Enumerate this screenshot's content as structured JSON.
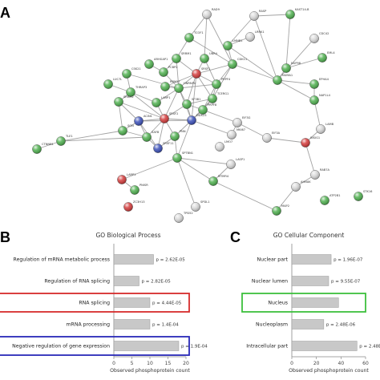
{
  "panels": {
    "a": "A",
    "b": "B",
    "c": "C"
  },
  "network": {
    "nodes": [
      {
        "id": "RAD9",
        "label": "RAD9",
        "color": "#d8d8d8"
      },
      {
        "id": "RASP",
        "label": "RASP",
        "color": "#d8d8d8"
      },
      {
        "id": "KAST14",
        "label": "KAST14-B",
        "color": "#4fb04f"
      },
      {
        "id": "TCOF1",
        "label": "TCOF1",
        "color": "#4fb04f"
      },
      {
        "id": "LRRK1",
        "label": "LRRK1",
        "color": "#d8d8d8"
      },
      {
        "id": "CDC42",
        "label": "CDC42",
        "color": "#d8d8d8"
      },
      {
        "id": "LMNB1",
        "label": "LMNB1",
        "color": "#4fb04f"
      },
      {
        "id": "EML4",
        "label": "EML4",
        "color": "#4fb04f"
      },
      {
        "id": "UBR4",
        "label": "UBR4",
        "color": "#4fb04f"
      },
      {
        "id": "ARHGAP1",
        "label": "ARHGAP1",
        "color": "#4fb04f"
      },
      {
        "id": "SRRM1",
        "label": "SRRM1",
        "color": "#4fb04f"
      },
      {
        "id": "PCBP2",
        "label": "PCBP2",
        "color": "#4fb04f"
      },
      {
        "id": "CSK21",
        "label": "CSK21",
        "color": "#4fb04f"
      },
      {
        "id": "RBM17",
        "label": "RBM17",
        "color": "#4fb04f"
      },
      {
        "id": "NUP98",
        "label": "NUP98",
        "color": "#4fb04f"
      },
      {
        "id": "CDK11",
        "label": "CDK11",
        "color": "#4fb04f"
      },
      {
        "id": "NUMA1",
        "label": "NUMA1",
        "color": "#4fb04f"
      },
      {
        "id": "SRSF1",
        "label": "SRSF1",
        "color": "#d33b3b"
      },
      {
        "id": "LARP1b",
        "label": "LARP1",
        "color": "#4fb04f"
      },
      {
        "id": "PRPF4",
        "label": "PRPF4",
        "color": "#4fb04f"
      },
      {
        "id": "EPHA4",
        "label": "EPHA4",
        "color": "#4fb04f"
      },
      {
        "id": "TCERG1",
        "label": "TCERG1",
        "color": "#4fb04f"
      },
      {
        "id": "THRAP3",
        "label": "THRAP3",
        "color": "#4fb04f"
      },
      {
        "id": "HNRNPU",
        "label": "HNRNPU",
        "color": "#4fb04f"
      },
      {
        "id": "NAP1L4",
        "label": "NAP1L4",
        "color": "#4fb04f"
      },
      {
        "id": "SF3B1",
        "label": "SF3B1",
        "color": "#4fb04f"
      },
      {
        "id": "PRPF8",
        "label": "PRPF8",
        "color": "#4fb04f"
      },
      {
        "id": "DDX23",
        "label": "DDX23",
        "color": "#3a4fb8"
      },
      {
        "id": "SRRM2",
        "label": "SRRM2",
        "color": "#4fb04f"
      },
      {
        "id": "LUC7L",
        "label": "LUC7L",
        "color": "#4fb04f"
      },
      {
        "id": "SRSF2",
        "label": "SRSF2",
        "color": "#d33b3b"
      },
      {
        "id": "ACIN1",
        "label": "ACIN1",
        "color": "#3a4fb8"
      },
      {
        "id": "EIF3G",
        "label": "EIF3G",
        "color": "#d8d8d8"
      },
      {
        "id": "SON",
        "label": "SON",
        "color": "#4fb04f"
      },
      {
        "id": "MKI67",
        "label": "MKI67",
        "color": "#d8d8d8"
      },
      {
        "id": "SAFB",
        "label": "SAFB",
        "color": "#4fb04f"
      },
      {
        "id": "SRSF11",
        "label": "SRSF11",
        "color": "#3a4fb8"
      },
      {
        "id": "PNN",
        "label": "PNN",
        "color": "#4fb04f"
      },
      {
        "id": "CTNNB1",
        "label": "CTNNB1",
        "color": "#4fb04f"
      },
      {
        "id": "TLE1",
        "label": "TLE1",
        "color": "#4fb04f"
      },
      {
        "id": "EIF3A",
        "label": "EIF3A",
        "color": "#d8d8d8"
      },
      {
        "id": "INSIG1",
        "label": "INSIG1",
        "color": "#d33b3b"
      },
      {
        "id": "LMO7",
        "label": "LMO7",
        "color": "#d8d8d8"
      },
      {
        "id": "LAMB",
        "label": "LAMB",
        "color": "#d8d8d8"
      },
      {
        "id": "LASP1",
        "label": "LASP1",
        "color": "#d8d8d8"
      },
      {
        "id": "SPTBN1",
        "label": "SPTBN1",
        "color": "#4fb04f"
      },
      {
        "id": "LARP1",
        "label": "LARP1",
        "color": "#d33b3b"
      },
      {
        "id": "PNISR",
        "label": "PNISR",
        "color": "#4fb04f"
      },
      {
        "id": "ZC3H13",
        "label": "ZC3H13",
        "color": "#d33b3b"
      },
      {
        "id": "MTMR4",
        "label": "MTMR4",
        "color": "#4fb04f"
      },
      {
        "id": "RAB7A",
        "label": "RAB7A",
        "color": "#d8d8d8"
      },
      {
        "id": "AHNAK",
        "label": "AHNAK",
        "color": "#d8d8d8"
      },
      {
        "id": "STK16",
        "label": "STK16",
        "color": "#4fb04f"
      },
      {
        "id": "ATP2B1",
        "label": "ATP2B1",
        "color": "#4fb04f"
      },
      {
        "id": "SPDL1",
        "label": "SPDL1",
        "color": "#d8d8d8"
      },
      {
        "id": "TPD52",
        "label": "TPD52",
        "color": "#d8d8d8"
      },
      {
        "id": "MAP2",
        "label": "MAP2",
        "color": "#4fb04f"
      }
    ]
  },
  "go_bp": {
    "title": "GO Biological Process",
    "xlabel": "Observed phosphoprotein count",
    "ticks": [
      "0",
      "5",
      "10",
      "15",
      "20"
    ],
    "xmax": 20,
    "bar_color": "#c8c8c8",
    "categories": [
      {
        "label": "Regulation of mRNA metabolic process",
        "value": 11,
        "pvalue": "p = 2.62E-05",
        "highlight": null
      },
      {
        "label": "Regulation of RNA splicing",
        "value": 7,
        "pvalue": "p = 2.82E-05",
        "highlight": null
      },
      {
        "label": "RNA splicing",
        "value": 10,
        "pvalue": "p = 4.44E-05",
        "highlight": "#d62b2b"
      },
      {
        "label": "mRNA processing",
        "value": 10,
        "pvalue": "p = 1.4E-04",
        "highlight": null
      },
      {
        "label": "Negative regulation of gene expression",
        "value": 18,
        "pvalue": "p = 1.9E-04",
        "highlight": "#2a2ab8"
      }
    ]
  },
  "go_cc": {
    "title": "GO Cellular Component",
    "xlabel": "Observed phosphoprotein count",
    "ticks": [
      "0",
      "20",
      "40",
      "60"
    ],
    "xmax": 60,
    "bar_color": "#c8c8c8",
    "categories": [
      {
        "label": "Nuclear part",
        "value": 32,
        "pvalue": "p = 1.96E-07",
        "highlight": null
      },
      {
        "label": "Nuclear lumen",
        "value": 30,
        "pvalue": "p = 9.55E-07",
        "highlight": null
      },
      {
        "label": "Nucleus",
        "value": 38,
        "pvalue": "",
        "highlight": "#3cc03c"
      },
      {
        "label": "Nucleoplasm",
        "value": 26,
        "pvalue": "p = 2.48E-06",
        "highlight": null
      },
      {
        "label": "Intracellular part",
        "value": 53,
        "pvalue": "p = 2.48E-06",
        "highlight": null
      }
    ]
  }
}
